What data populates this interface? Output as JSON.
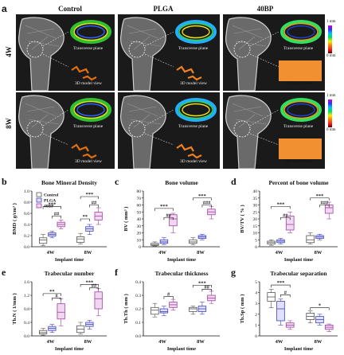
{
  "figure": {
    "panel_a": {
      "letter": "a",
      "columns": [
        "Control",
        "PLGA",
        "40BP"
      ],
      "rows": [
        "4W",
        "8W"
      ],
      "inset_labels": {
        "transverse": "Transverse plane",
        "model": "3D model view"
      },
      "colorbar": {
        "top": "1 mm",
        "bottom": "0 mm"
      }
    },
    "legend": [
      "Control",
      "PLGA",
      "40BP"
    ],
    "colors": {
      "control": "#555555",
      "plga": "#4040c0",
      "bp40": "#a040a0"
    }
  },
  "chart_data": [
    {
      "id": "b",
      "type": "box",
      "title": "Bone Mineral Density",
      "xlabel": "Implant time",
      "ylabel": "BMD ( g/cm³ )",
      "categories": [
        "4W",
        "8W"
      ],
      "ylim": [
        0,
        1.0
      ],
      "yticks": [
        "0.0",
        "0.2",
        "0.4",
        "0.6",
        "0.8",
        "1.0"
      ],
      "ytick_values": [
        0,
        0.2,
        0.4,
        0.6,
        0.8,
        1.0
      ],
      "series": [
        {
          "name": "Control",
          "boxes": [
            [
              0.02,
              0.06,
              0.12,
              0.16,
              0.22
            ],
            [
              0.05,
              0.08,
              0.14,
              0.18,
              0.24
            ]
          ]
        },
        {
          "name": "PLGA",
          "boxes": [
            [
              0.16,
              0.19,
              0.22,
              0.25,
              0.28
            ],
            [
              0.22,
              0.28,
              0.32,
              0.36,
              0.4
            ]
          ]
        },
        {
          "name": "40BP",
          "boxes": [
            [
              0.32,
              0.36,
              0.4,
              0.44,
              0.48
            ],
            [
              0.4,
              0.48,
              0.55,
              0.62,
              0.7
            ]
          ]
        }
      ],
      "annotations": [
        {
          "label": "***",
          "cat": 0,
          "from": 0,
          "to": 2,
          "level": 0.72
        },
        {
          "label": "##",
          "cat": 0,
          "from": 1,
          "to": 2,
          "level": 0.55
        },
        {
          "label": "***",
          "cat": 1,
          "from": 0,
          "to": 2,
          "level": 0.9
        },
        {
          "label": "**",
          "cat": 1,
          "from": 0,
          "to": 1,
          "level": 0.5
        },
        {
          "label": "##",
          "cat": 1,
          "from": 1,
          "to": 2,
          "level": 0.75
        }
      ],
      "show_legend": true
    },
    {
      "id": "c",
      "type": "box",
      "title": "Bone volume",
      "xlabel": "Implant time",
      "ylabel": "BV ( mm³ )",
      "categories": [
        "4W",
        "8W"
      ],
      "ylim": [
        0,
        80
      ],
      "yticks": [
        "0",
        "10",
        "20",
        "30",
        "40",
        "50",
        "60",
        "70",
        "80"
      ],
      "ytick_values": [
        0,
        10,
        20,
        30,
        40,
        50,
        60,
        70,
        80
      ],
      "series": [
        {
          "name": "Control",
          "boxes": [
            [
              1,
              2,
              3,
              5,
              7
            ],
            [
              3,
              5,
              7,
              10,
              13
            ]
          ]
        },
        {
          "name": "PLGA",
          "boxes": [
            [
              3,
              5,
              7,
              10,
              13
            ],
            [
              10,
              12,
              14,
              16,
              18
            ]
          ]
        },
        {
          "name": "40BP",
          "boxes": [
            [
              20,
              30,
              40,
              46,
              48
            ],
            [
              40,
              46,
              50,
              54,
              58
            ]
          ]
        }
      ],
      "annotations": [
        {
          "label": "***",
          "cat": 0,
          "from": 0,
          "to": 2,
          "level": 55
        },
        {
          "label": "##",
          "cat": 0,
          "from": 1,
          "to": 2,
          "level": 42
        },
        {
          "label": "***",
          "cat": 1,
          "from": 0,
          "to": 2,
          "level": 70
        },
        {
          "label": "###",
          "cat": 1,
          "from": 1,
          "to": 2,
          "level": 60
        }
      ]
    },
    {
      "id": "d",
      "type": "box",
      "title": "Percent of bone volume",
      "xlabel": "Implant time",
      "ylabel": "BV/TV ( % )",
      "categories": [
        "4W",
        "8W"
      ],
      "ylim": [
        0,
        40
      ],
      "yticks": [
        "0",
        "5",
        "10",
        "15",
        "20",
        "25",
        "30",
        "35",
        "40"
      ],
      "ytick_values": [
        0,
        5,
        10,
        15,
        20,
        25,
        30,
        35,
        40
      ],
      "series": [
        {
          "name": "Control",
          "boxes": [
            [
              1,
              2,
              3,
              4,
              5
            ],
            [
              2,
              3,
              5,
              8,
              10
            ]
          ]
        },
        {
          "name": "PLGA",
          "boxes": [
            [
              2,
              3,
              4,
              5,
              6
            ],
            [
              5,
              6,
              7,
              8,
              9
            ]
          ]
        },
        {
          "name": "40BP",
          "boxes": [
            [
              10,
              12,
              16,
              22,
              25
            ],
            [
              20,
              24,
              28,
              30,
              32
            ]
          ]
        }
      ],
      "annotations": [
        {
          "label": "***",
          "cat": 0,
          "from": 0,
          "to": 2,
          "level": 29
        },
        {
          "label": "##",
          "cat": 0,
          "from": 1,
          "to": 2,
          "level": 21
        },
        {
          "label": "***",
          "cat": 1,
          "from": 0,
          "to": 2,
          "level": 35
        },
        {
          "label": "###",
          "cat": 1,
          "from": 1,
          "to": 2,
          "level": 30
        }
      ]
    },
    {
      "id": "e",
      "type": "box",
      "title": "Trabecular number",
      "xlabel": "Implant time",
      "ylabel": "Tb.N ( 1/mm )",
      "categories": [
        "4W",
        "8W"
      ],
      "ylim": [
        0,
        1.6
      ],
      "yticks": [
        "0.0",
        "0.4",
        "0.8",
        "1.2",
        "1.6"
      ],
      "ytick_values": [
        0,
        0.4,
        0.8,
        1.2,
        1.6
      ],
      "series": [
        {
          "name": "Control",
          "boxes": [
            [
              0.02,
              0.06,
              0.1,
              0.16,
              0.22
            ],
            [
              0.05,
              0.1,
              0.2,
              0.3,
              0.4
            ]
          ]
        },
        {
          "name": "PLGA",
          "boxes": [
            [
              0.1,
              0.16,
              0.22,
              0.28,
              0.34
            ],
            [
              0.2,
              0.28,
              0.34,
              0.4,
              0.46
            ]
          ]
        },
        {
          "name": "40BP",
          "boxes": [
            [
              0.3,
              0.5,
              0.7,
              0.95,
              1.1
            ],
            [
              0.6,
              0.8,
              1.1,
              1.3,
              1.4
            ]
          ]
        }
      ],
      "annotations": [
        {
          "label": "**",
          "cat": 0,
          "from": 0,
          "to": 2,
          "level": 1.25
        },
        {
          "label": "#",
          "cat": 0,
          "from": 1,
          "to": 2,
          "level": 1.12
        },
        {
          "label": "***",
          "cat": 1,
          "from": 0,
          "to": 2,
          "level": 1.52
        },
        {
          "label": "##",
          "cat": 1,
          "from": 1,
          "to": 2,
          "level": 1.42
        }
      ]
    },
    {
      "id": "f",
      "type": "box",
      "title": "Trabecular thickness",
      "xlabel": "Implant time",
      "ylabel": "Tb.Th ( mm )",
      "categories": [
        "4W",
        "8W"
      ],
      "ylim": [
        0,
        0.4
      ],
      "yticks": [
        "0.0",
        "0.1",
        "0.2",
        "0.3",
        "0.4"
      ],
      "ytick_values": [
        0,
        0.1,
        0.2,
        0.3,
        0.4
      ],
      "series": [
        {
          "name": "Control",
          "boxes": [
            [
              0.14,
              0.16,
              0.19,
              0.21,
              0.24
            ],
            [
              0.16,
              0.18,
              0.2,
              0.21,
              0.22
            ]
          ]
        },
        {
          "name": "PLGA",
          "boxes": [
            [
              0.15,
              0.17,
              0.18,
              0.2,
              0.22
            ],
            [
              0.16,
              0.18,
              0.2,
              0.22,
              0.25
            ]
          ]
        },
        {
          "name": "40BP",
          "boxes": [
            [
              0.19,
              0.21,
              0.23,
              0.25,
              0.27
            ],
            [
              0.24,
              0.26,
              0.28,
              0.3,
              0.33
            ]
          ]
        }
      ],
      "annotations": [
        {
          "label": "#",
          "cat": 0,
          "from": 1,
          "to": 2,
          "level": 0.29
        },
        {
          "label": "***",
          "cat": 1,
          "from": 0,
          "to": 2,
          "level": 0.375
        },
        {
          "label": "##",
          "cat": 1,
          "from": 1,
          "to": 2,
          "level": 0.345
        }
      ]
    },
    {
      "id": "g",
      "type": "box",
      "title": "Trabecular separation",
      "xlabel": "Implant time",
      "ylabel": "Tb.Sp ( mm )",
      "categories": [
        "4W",
        "8W"
      ],
      "ylim": [
        0,
        5
      ],
      "yticks": [
        "0",
        "1",
        "2",
        "3",
        "4",
        "5"
      ],
      "ytick_values": [
        0,
        1,
        2,
        3,
        4,
        5
      ],
      "series": [
        {
          "name": "Control",
          "boxes": [
            [
              2.6,
              3.2,
              3.6,
              4.0,
              4.3
            ],
            [
              1.2,
              1.5,
              1.8,
              2.1,
              2.3
            ]
          ]
        },
        {
          "name": "PLGA",
          "boxes": [
            [
              1.0,
              1.4,
              2.5,
              3.2,
              3.4
            ],
            [
              1.0,
              1.2,
              1.5,
              1.8,
              2.0
            ]
          ]
        },
        {
          "name": "40BP",
          "boxes": [
            [
              0.6,
              0.8,
              1.0,
              1.2,
              1.4
            ],
            [
              0.4,
              0.6,
              0.8,
              1.0,
              1.1
            ]
          ]
        }
      ],
      "annotations": [
        {
          "label": "***",
          "cat": 0,
          "from": 0,
          "to": 2,
          "level": 4.7
        },
        {
          "label": "#",
          "cat": 0,
          "from": 1,
          "to": 2,
          "level": 3.8
        },
        {
          "label": "*",
          "cat": 1,
          "from": 0,
          "to": 2,
          "level": 2.6
        }
      ]
    }
  ]
}
